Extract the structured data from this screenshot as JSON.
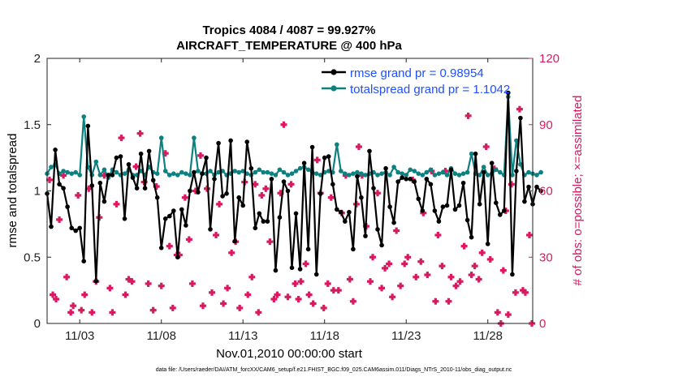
{
  "chart_data": {
    "type": "line",
    "title": [
      "Tropics 4084 / 4087 = 99.927%",
      "AIRCRAFT_TEMPERATURE @ 400 hPa"
    ],
    "xlabel": "Nov.01,2010 00:00:00 start",
    "ylabel_left": "rmse and totalspread",
    "ylabel_right": "# of obs: o=possible; ×=assimilated",
    "ylim_left": [
      0,
      2
    ],
    "ylim_right": [
      0,
      120
    ],
    "xlim": [
      1.0,
      30.75
    ],
    "x_ticks": [
      {
        "value": 3,
        "label": "11/03"
      },
      {
        "value": 8,
        "label": "11/08"
      },
      {
        "value": 13,
        "label": "11/13"
      },
      {
        "value": 18,
        "label": "11/18"
      },
      {
        "value": 23,
        "label": "11/23"
      },
      {
        "value": 28,
        "label": "11/28"
      }
    ],
    "y_ticks_left": [
      {
        "value": 0,
        "label": "0"
      },
      {
        "value": 0.5,
        "label": "0.5"
      },
      {
        "value": 1,
        "label": "1"
      },
      {
        "value": 1.5,
        "label": "1.5"
      },
      {
        "value": 2,
        "label": "2"
      }
    ],
    "y_ticks_right": [
      {
        "value": 0,
        "label": "0"
      },
      {
        "value": 30,
        "label": "30"
      },
      {
        "value": 60,
        "label": "60"
      },
      {
        "value": 90,
        "label": "90"
      },
      {
        "value": 120,
        "label": "120"
      }
    ],
    "x_start": 1.0,
    "x_step": 0.25,
    "series": [
      {
        "name": "rmse grand pr = 0.98954",
        "color": "#000000",
        "values": [
          0.98,
          0.73,
          1.31,
          1.05,
          1.02,
          0.88,
          0.72,
          0.7,
          0.72,
          0.47,
          1.49,
          1.04,
          0.32,
          1.06,
          0.92,
          1.12,
          1.12,
          1.25,
          1.26,
          0.79,
          1.2,
          1.1,
          1.02,
          1.28,
          1.02,
          1.3,
          1.08,
          0.95,
          0.57,
          0.79,
          0.81,
          0.85,
          0.5,
          0.86,
          0.74,
          1.0,
          1.14,
          0.99,
          1.13,
          1.25,
          0.71,
          1.09,
          1.36,
          0.96,
          0.98,
          1.38,
          0.62,
          0.95,
          0.89,
          1.37,
          1.17,
          0.72,
          0.83,
          0.77,
          0.77,
          1.09,
          0.4,
          0.8,
          1.07,
          1.0,
          0.42,
          0.83,
          0.41,
          1.21,
          0.56,
          1.33,
          0.37,
          0.98,
          1.25,
          1.26,
          1.05,
          0.86,
          0.84,
          0.77,
          0.84,
          0.56,
          1.11,
          0.95,
          0.66,
          1.3,
          1.02,
          0.71,
          0.59,
          1.17,
          0.88,
          0.76,
          1.07,
          1.1,
          1.09,
          1.09,
          1.07,
          0.94,
          0.85,
          1.09,
          1.05,
          0.85,
          0.77,
          0.88,
          0.89,
          1.16,
          0.86,
          0.89,
          1.06,
          0.78,
          0.65,
          1.28,
          0.9,
          1.14,
          0.6,
          1.21,
          0.91,
          0.82,
          0.85,
          1.74,
          0.37,
          1.15,
          1.55,
          0.92,
          1.03,
          0.9,
          1.03,
          1.0
        ]
      },
      {
        "name": "totalspread grand pr = 1.1042",
        "color": "#0f8080",
        "values": [
          1.13,
          1.18,
          1.2,
          1.13,
          1.15,
          1.14,
          1.13,
          1.14,
          1.12,
          1.56,
          1.18,
          1.12,
          1.22,
          1.12,
          1.16,
          1.1,
          1.16,
          1.14,
          1.12,
          1.13,
          1.16,
          1.12,
          1.12,
          1.15,
          1.12,
          1.18,
          1.14,
          1.13,
          1.4,
          1.15,
          1.12,
          1.13,
          1.12,
          1.14,
          1.13,
          1.12,
          1.4,
          1.15,
          1.13,
          1.13,
          1.15,
          1.12,
          1.14,
          1.15,
          1.12,
          1.13,
          1.15,
          1.14,
          1.15,
          1.13,
          1.12,
          1.14,
          1.16,
          1.14,
          1.14,
          1.13,
          1.12,
          1.16,
          1.14,
          1.12,
          1.13,
          1.15,
          1.17,
          1.18,
          1.16,
          1.14,
          1.13,
          1.12,
          1.14,
          1.15,
          1.14,
          1.35,
          1.15,
          1.13,
          1.12,
          1.13,
          1.14,
          1.13,
          1.12,
          1.13,
          1.14,
          1.12,
          1.13,
          1.14,
          1.12,
          1.18,
          1.14,
          1.13,
          1.12,
          1.16,
          1.15,
          1.13,
          1.12,
          1.14,
          1.16,
          1.12,
          1.13,
          1.14,
          1.12,
          1.17,
          1.13,
          1.12,
          1.13,
          1.14,
          1.28,
          1.13,
          1.12,
          1.18,
          1.12,
          1.13,
          1.16,
          1.14,
          1.12,
          1.71,
          1.12,
          1.38,
          1.2,
          1.12,
          1.14,
          1.13,
          1.12,
          1.14
        ]
      }
    ],
    "obs_series": {
      "name": "# of obs",
      "color": "#d81b60",
      "points": [
        [
          1.15,
          65
        ],
        [
          1.35,
          13
        ],
        [
          1.55,
          11
        ],
        [
          1.75,
          47
        ],
        [
          2.0,
          67
        ],
        [
          2.2,
          21
        ],
        [
          2.45,
          5
        ],
        [
          2.6,
          8
        ],
        [
          2.9,
          58
        ],
        [
          3.1,
          6
        ],
        [
          3.3,
          13
        ],
        [
          3.55,
          61
        ],
        [
          3.75,
          5
        ],
        [
          4.0,
          19
        ],
        [
          4.2,
          48
        ],
        [
          4.5,
          67
        ],
        [
          4.85,
          16
        ],
        [
          5.0,
          5
        ],
        [
          5.25,
          54
        ],
        [
          5.55,
          84
        ],
        [
          5.8,
          13
        ],
        [
          6.0,
          20
        ],
        [
          6.2,
          19
        ],
        [
          6.45,
          71
        ],
        [
          6.7,
          86
        ],
        [
          6.95,
          64
        ],
        [
          7.2,
          18
        ],
        [
          7.5,
          6
        ],
        [
          7.7,
          62
        ],
        [
          8.0,
          17
        ],
        [
          8.25,
          77
        ],
        [
          8.5,
          35
        ],
        [
          8.7,
          7
        ],
        [
          8.95,
          31
        ],
        [
          9.1,
          31
        ],
        [
          9.45,
          57
        ],
        [
          9.7,
          38
        ],
        [
          9.9,
          18
        ],
        [
          10.1,
          60
        ],
        [
          10.4,
          76
        ],
        [
          10.55,
          8
        ],
        [
          10.8,
          61
        ],
        [
          11.1,
          14
        ],
        [
          11.35,
          40
        ],
        [
          11.55,
          54
        ],
        [
          11.8,
          9
        ],
        [
          12.05,
          16
        ],
        [
          12.3,
          32
        ],
        [
          12.55,
          37
        ],
        [
          12.8,
          7
        ],
        [
          13.1,
          64
        ],
        [
          13.3,
          13
        ],
        [
          13.55,
          21
        ],
        [
          13.75,
          63
        ],
        [
          13.95,
          5
        ],
        [
          14.15,
          58
        ],
        [
          14.4,
          61
        ],
        [
          14.65,
          37
        ],
        [
          14.9,
          11
        ],
        [
          15.1,
          13
        ],
        [
          15.3,
          59
        ],
        [
          15.5,
          90
        ],
        [
          15.75,
          12
        ],
        [
          15.95,
          63
        ],
        [
          16.2,
          18
        ],
        [
          16.4,
          11
        ],
        [
          16.55,
          19
        ],
        [
          16.85,
          27
        ],
        [
          17.05,
          13
        ],
        [
          17.3,
          9
        ],
        [
          17.55,
          74
        ],
        [
          17.75,
          59
        ],
        [
          17.95,
          7
        ],
        [
          18.2,
          18
        ],
        [
          18.4,
          57
        ],
        [
          18.55,
          15
        ],
        [
          18.85,
          15
        ],
        [
          19.05,
          50
        ],
        [
          19.3,
          67
        ],
        [
          19.55,
          20
        ],
        [
          19.75,
          10
        ],
        [
          19.95,
          54
        ],
        [
          20.1,
          80
        ],
        [
          20.3,
          67
        ],
        [
          20.55,
          44
        ],
        [
          20.8,
          19
        ],
        [
          20.95,
          30
        ],
        [
          21.25,
          59
        ],
        [
          21.5,
          16
        ],
        [
          21.7,
          25
        ],
        [
          21.95,
          27
        ],
        [
          22.15,
          12
        ],
        [
          22.4,
          42
        ],
        [
          22.65,
          17
        ],
        [
          22.9,
          27
        ],
        [
          23.1,
          30
        ],
        [
          23.4,
          65
        ],
        [
          23.6,
          21
        ],
        [
          23.9,
          28
        ],
        [
          24.05,
          50
        ],
        [
          24.3,
          22
        ],
        [
          24.55,
          69
        ],
        [
          24.8,
          10
        ],
        [
          24.95,
          40
        ],
        [
          25.2,
          26
        ],
        [
          25.4,
          69
        ],
        [
          25.6,
          10
        ],
        [
          25.75,
          21
        ],
        [
          26.05,
          17
        ],
        [
          26.3,
          19
        ],
        [
          26.55,
          35
        ],
        [
          26.8,
          94
        ],
        [
          27.0,
          22
        ],
        [
          27.2,
          26
        ],
        [
          27.45,
          20
        ],
        [
          27.65,
          32
        ],
        [
          27.9,
          80
        ],
        [
          28.15,
          29
        ],
        [
          28.4,
          70
        ],
        [
          28.6,
          5
        ],
        [
          28.8,
          0
        ],
        [
          28.95,
          24
        ],
        [
          29.1,
          51
        ],
        [
          29.25,
          4
        ],
        [
          29.45,
          63
        ],
        [
          29.7,
          14
        ],
        [
          29.95,
          97
        ],
        [
          30.15,
          15
        ],
        [
          30.3,
          14
        ],
        [
          30.55,
          40
        ],
        [
          30.7,
          0
        ]
      ]
    },
    "legend": {
      "position": "top-right",
      "entries": [
        "rmse grand pr = 0.98954",
        "totalspread grand pr = 1.1042"
      ]
    },
    "footer": "data file: /Users/raeder/DAI/ATM_forcXX/CAM6_setup/f.e21.FHIST_BGC.f09_025.CAM6assim.011/Diags_NTrS_2010-11/obs_diag_output.nc"
  }
}
